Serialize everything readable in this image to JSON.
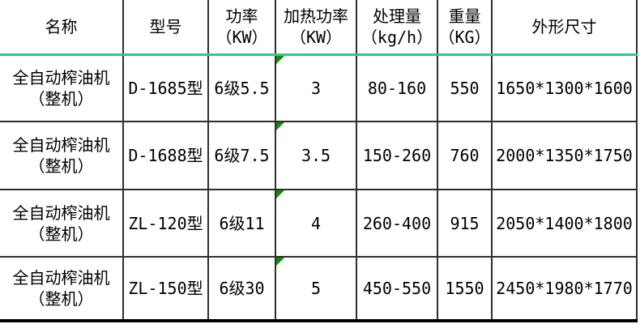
{
  "colors": {
    "header_divider_green": "#2dc891",
    "error_triangle_green": "#108c10",
    "grid_line": "#2f2f2f",
    "bottom_border": "#000000",
    "text": "#000000",
    "background": "#ffffff"
  },
  "table": {
    "headers": {
      "name": "名称",
      "model": "型号",
      "power": "功率\n（KW）",
      "heating_power": "加热功率\n（KW）",
      "capacity": "处理量\n（kg/h）",
      "weight": "重量\n（KG）",
      "dimensions": "外形尺寸"
    },
    "rows": [
      {
        "name": "全自动榨油机\n（整机）",
        "model": "D-1685型",
        "power": "6级5.5",
        "heating_power": "3",
        "capacity": "80-160",
        "weight": "550",
        "dimensions": "1650*1300*1600"
      },
      {
        "name": "全自动榨油机\n（整机）",
        "model": "D-1688型",
        "power": "6级7.5",
        "heating_power": "3.5",
        "capacity": "150-260",
        "weight": "760",
        "dimensions": "2000*1350*1750"
      },
      {
        "name": "全自动榨油机\n（整机）",
        "model": "ZL-120型",
        "power": "6级11",
        "heating_power": "4",
        "capacity": "260-400",
        "weight": "915",
        "dimensions": "2050*1400*1800"
      },
      {
        "name": "全自动榨油机\n（整机）",
        "model": "ZL-150型",
        "power": "6级30",
        "heating_power": "5",
        "capacity": "450-550",
        "weight": "1550",
        "dimensions": "2450*1980*1770"
      }
    ]
  }
}
